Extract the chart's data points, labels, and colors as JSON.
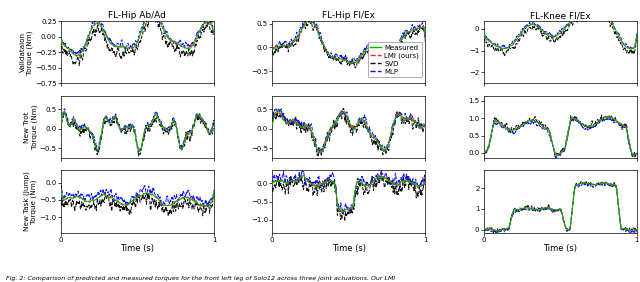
{
  "col_titles": [
    "FL-Hip Ab/Ad",
    "FL-Hip Fl/Ex",
    "FL-Knee Fl/Ex"
  ],
  "row_ylabels": [
    "Validataion\nTorque (Nm)",
    "New Trot\nTorque (Nm)",
    "New Task (Jump)\nTorque (Nm)"
  ],
  "xlabel": "Time (s)",
  "legend_labels": [
    "Measured",
    "LMI (ours)",
    "SVD",
    "MLP"
  ],
  "legend_colors": [
    "#00bb00",
    "#ff2020",
    "#111111",
    "#1111ff"
  ],
  "line_width": 0.7,
  "figsize": [
    6.4,
    2.82
  ],
  "dpi": 100,
  "caption": "Fig. 2: Comparison of predicted and measured torques for the front left leg of Solo12 across three joint actuations. Our LMI",
  "ylims": [
    [
      [
        -0.75,
        0.25
      ],
      [
        -0.75,
        0.55
      ],
      [
        -2.5,
        0.35
      ]
    ],
    [
      [
        -0.75,
        0.85
      ],
      [
        -0.75,
        0.85
      ],
      [
        -0.15,
        1.65
      ]
    ],
    [
      [
        -1.45,
        0.35
      ],
      [
        -1.35,
        0.35
      ],
      [
        -0.15,
        2.85
      ]
    ]
  ],
  "yticks": [
    [
      [
        "-0.5",
        "0.0"
      ],
      [
        "-0.5",
        "0.0"
      ],
      [
        "-2",
        "-1",
        "0"
      ]
    ],
    [
      [
        "-0.5",
        "0.0",
        "0.5"
      ],
      [
        "-0.5",
        "0.0",
        "0.5"
      ],
      [
        "0",
        "1"
      ]
    ],
    [
      [
        "-1",
        "0"
      ],
      [
        "-1",
        "0"
      ],
      [
        "0",
        "1",
        "2"
      ]
    ]
  ]
}
